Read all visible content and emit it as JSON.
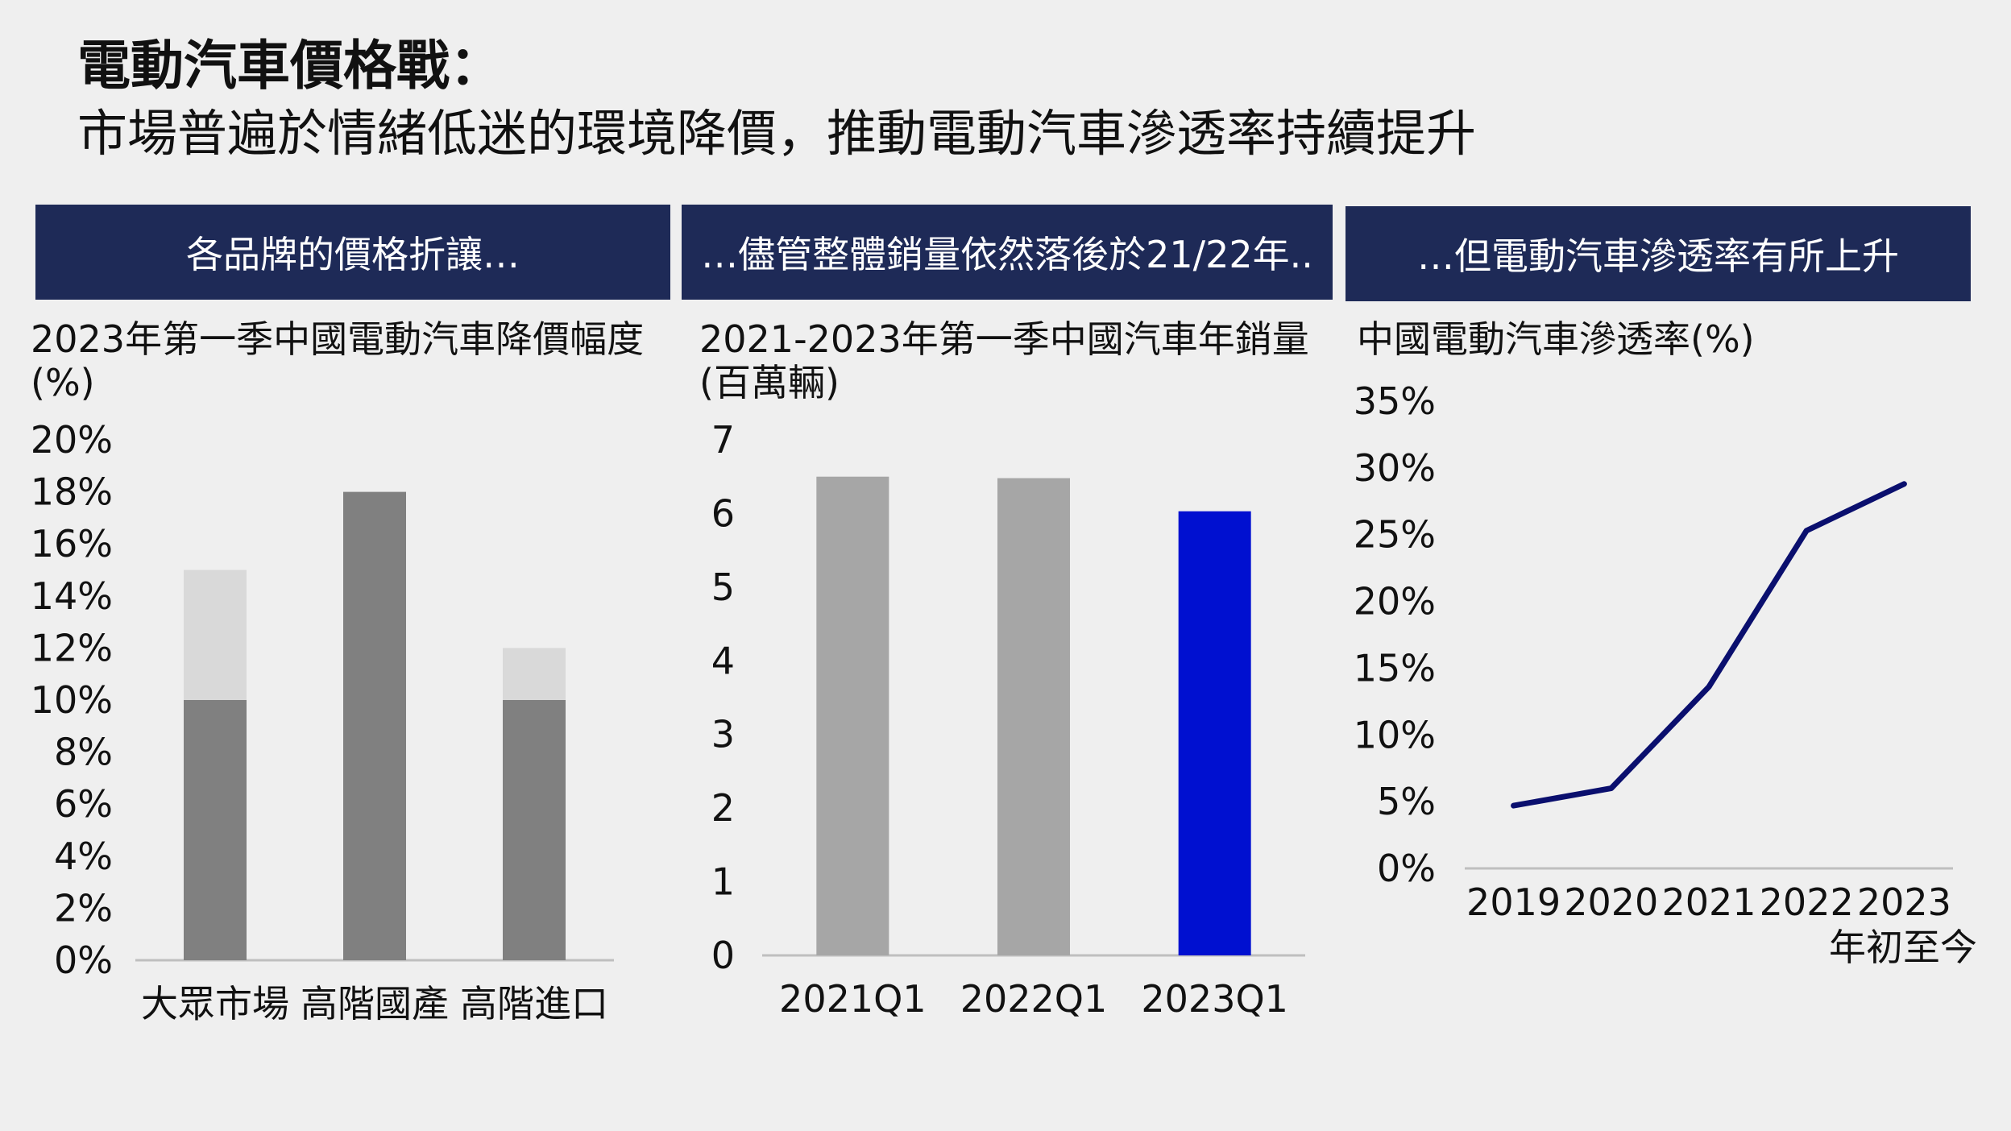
{
  "title": "電動汽車價格戰：",
  "subtitle": "市場普遍於情緒低迷的環境降價，推動電動汽車滲透率持續提升",
  "banners": [
    "各品牌的價格折讓…",
    "…儘管整體銷量依然落後於21/22年..",
    "…但電動汽車滲透率有所上升"
  ],
  "colors": {
    "banner": "#1e2a57",
    "dark_gray": "#808080",
    "light_gray": "#d9d9d9",
    "mid_gray": "#a6a6a6",
    "blue": "#0010d0",
    "navy": "#0a0f6e"
  },
  "chart_data": [
    {
      "type": "bar",
      "stacked": true,
      "title": "2023年第一季中國電動汽車降價幅度",
      "title_line2": "(%)",
      "categories": [
        "大眾市場",
        "高階國產",
        "高階進口"
      ],
      "series": [
        {
          "values": [
            10,
            18,
            10
          ],
          "color": "#808080"
        },
        {
          "values": [
            5,
            0,
            2
          ],
          "color": "#d9d9d9"
        }
      ],
      "ylim": [
        0,
        20
      ],
      "yticks": [
        "0%",
        "2%",
        "4%",
        "6%",
        "8%",
        "10%",
        "12%",
        "14%",
        "16%",
        "18%",
        "20%"
      ],
      "grid": false
    },
    {
      "type": "bar",
      "title": "2021-2023年第一季中國汽車年銷量",
      "title_line2": "(百萬輛)",
      "categories": [
        "2021Q1",
        "2022Q1",
        "2023Q1"
      ],
      "values": [
        6.5,
        6.48,
        6.03
      ],
      "colors": [
        "#a6a6a6",
        "#a6a6a6",
        "#0010d0"
      ],
      "ylim": [
        0,
        7
      ],
      "yticks": [
        "0",
        "1",
        "2",
        "3",
        "4",
        "5",
        "6",
        "7"
      ],
      "grid": false
    },
    {
      "type": "line",
      "title": "中國電動汽車滲透率(%)",
      "categories": [
        "2019",
        "2020",
        "2021",
        "2022",
        "2023"
      ],
      "category_line2": [
        "",
        "",
        "",
        "",
        "年初至今"
      ],
      "values": [
        4.7,
        6.0,
        13.6,
        25.3,
        28.8
      ],
      "color": "#0a0f6e",
      "ylim": [
        0,
        35
      ],
      "yticks": [
        "0%",
        "5%",
        "10%",
        "15%",
        "20%",
        "25%",
        "30%",
        "35%"
      ],
      "grid": false
    }
  ]
}
